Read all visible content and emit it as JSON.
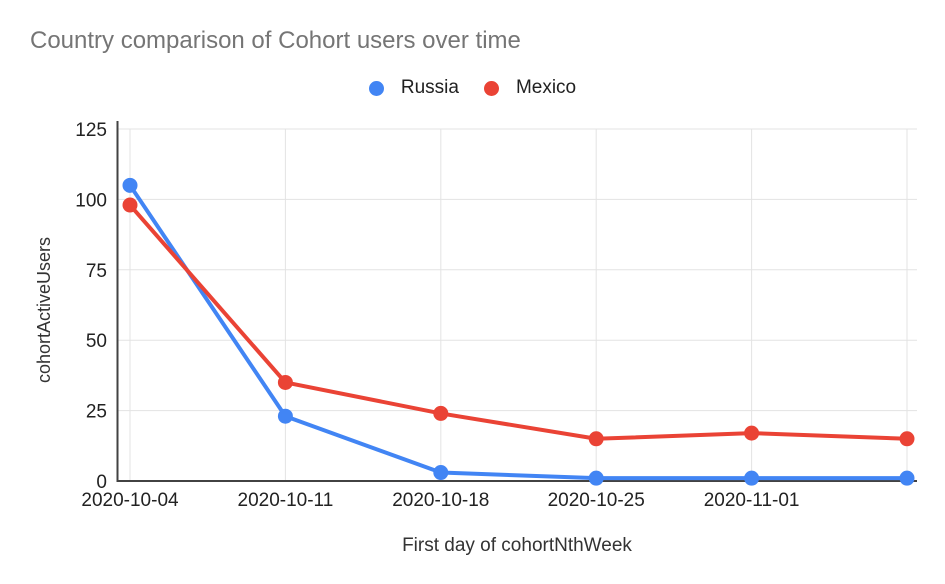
{
  "page": {
    "background": "#ffffff"
  },
  "chart_data": {
    "type": "line",
    "title": "Country comparison of Cohort users over time",
    "xlabel": "First day of cohortNthWeek",
    "ylabel": "cohortActiveUsers",
    "categories": [
      "2020-10-04",
      "2020-10-11",
      "2020-10-18",
      "2020-10-25",
      "2020-11-01",
      ""
    ],
    "series": [
      {
        "name": "Russia",
        "color": "#4285f4",
        "values": [
          105,
          23,
          3,
          1,
          1,
          1
        ]
      },
      {
        "name": "Mexico",
        "color": "#ea4335",
        "values": [
          98,
          35,
          24,
          15,
          17,
          15
        ]
      }
    ],
    "ylim": [
      0,
      125
    ],
    "yticks": [
      0,
      25,
      50,
      75,
      100,
      125
    ],
    "grid": true,
    "legend_position": "top-center",
    "marker": "circle"
  },
  "style": {
    "title_color": "#757575",
    "tick_color": "#222222",
    "axis_title_color": "#333333",
    "legend_text_color": "#212121",
    "grid_color": "#e3e3e3",
    "axis_color": "#424242"
  }
}
